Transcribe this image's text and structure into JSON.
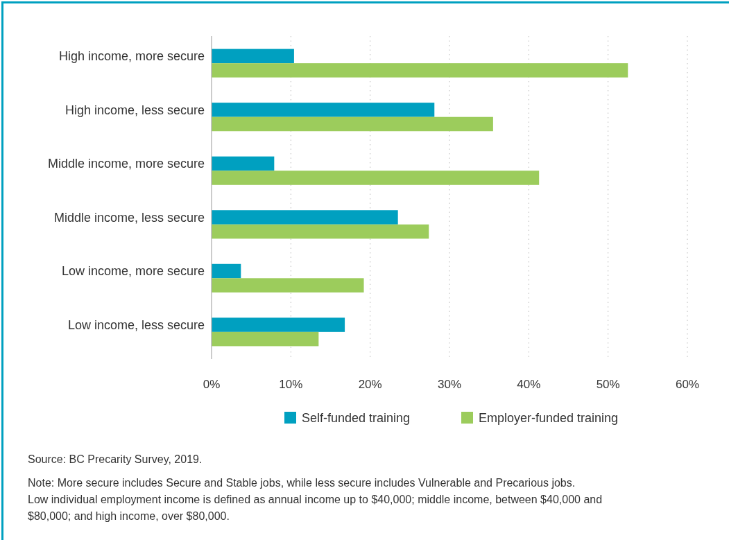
{
  "chart_data": {
    "type": "bar",
    "orientation": "horizontal",
    "categories": [
      "High income, more secure",
      "High income, less secure",
      "Middle income, more secure",
      "Middle income, less secure",
      "Low income, more secure",
      "Low income, less secure"
    ],
    "series": [
      {
        "name": "Self-funded training",
        "color": "#00a0c0",
        "values": [
          10.4,
          28.1,
          7.9,
          23.5,
          3.7,
          16.8
        ]
      },
      {
        "name": "Employer-funded training",
        "color": "#9ccc5c",
        "values": [
          52.5,
          35.5,
          41.3,
          27.4,
          19.2,
          13.5
        ]
      }
    ],
    "xlim": [
      0,
      60
    ],
    "xticks": [
      {
        "value": 0,
        "label": "0%"
      },
      {
        "value": 10,
        "label": "10%"
      },
      {
        "value": 20,
        "label": "20%"
      },
      {
        "value": 30,
        "label": "30%"
      },
      {
        "value": 40,
        "label": "40%"
      },
      {
        "value": 50,
        "label": "50%"
      },
      {
        "value": 60,
        "label": "60%"
      }
    ],
    "grid": "x",
    "legend": "bottom",
    "annotations": [
      "Source: BC Precarity Survey, 2019.",
      "Note: More secure includes Secure and Stable jobs, while less secure includes Vulnerable and Precarious jobs. Low individual employment income is defined as annual income up to $40,000; middle income, between $40,000 and $80,000; and high income, over $80,000."
    ]
  }
}
